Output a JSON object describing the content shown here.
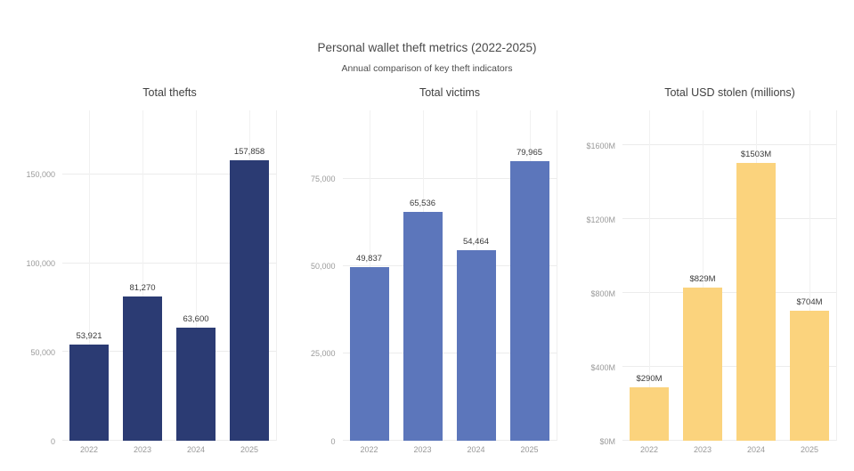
{
  "header": {
    "title": "Personal wallet theft metrics (2022-2025)",
    "subtitle": "Annual comparison of key theft indicators"
  },
  "chart_data": [
    {
      "type": "bar",
      "title": "Total thefts",
      "categories": [
        "2022",
        "2023",
        "2024",
        "2025"
      ],
      "values": [
        53921,
        81270,
        63600,
        157858
      ],
      "value_labels": [
        "53,921",
        "81,270",
        "63,600",
        "157,858"
      ],
      "bar_color": "#2b3b73",
      "xlabel": "",
      "ylabel": "",
      "ylim": [
        0,
        186000
      ],
      "yticks": [
        {
          "value": 0,
          "label": "0"
        },
        {
          "value": 50000,
          "label": "50,000"
        },
        {
          "value": 100000,
          "label": "100,000"
        },
        {
          "value": 150000,
          "label": "150,000"
        }
      ],
      "grid": true,
      "legend": "none"
    },
    {
      "type": "bar",
      "title": "Total victims",
      "categories": [
        "2022",
        "2023",
        "2024",
        "2025"
      ],
      "values": [
        49837,
        65536,
        54464,
        79965
      ],
      "value_labels": [
        "49,837",
        "65,536",
        "54,464",
        "79,965"
      ],
      "bar_color": "#5c76bb",
      "xlabel": "",
      "ylabel": "",
      "ylim": [
        0,
        94600
      ],
      "yticks": [
        {
          "value": 0,
          "label": "0"
        },
        {
          "value": 25000,
          "label": "25,000"
        },
        {
          "value": 50000,
          "label": "50,000"
        },
        {
          "value": 75000,
          "label": "75,000"
        }
      ],
      "grid": true,
      "legend": "none"
    },
    {
      "type": "bar",
      "title": "Total USD stolen (millions)",
      "categories": [
        "2022",
        "2023",
        "2024",
        "2025"
      ],
      "values": [
        290,
        829,
        1503,
        704
      ],
      "value_labels": [
        "$290M",
        "$829M",
        "$1503M",
        "$704M"
      ],
      "bar_color": "#fbd37d",
      "xlabel": "",
      "ylabel": "",
      "ylim": [
        0,
        1790
      ],
      "yticks": [
        {
          "value": 0,
          "label": "$0M"
        },
        {
          "value": 400,
          "label": "$400M"
        },
        {
          "value": 800,
          "label": "$800M"
        },
        {
          "value": 1200,
          "label": "$1200M"
        },
        {
          "value": 1600,
          "label": "$1600M"
        }
      ],
      "grid": true,
      "legend": "none"
    }
  ],
  "colors": {
    "grid": "#ececec",
    "tick_label": "#9a9a9a",
    "value_label": "#3a3a3a",
    "navy_bar": "#2b3b73",
    "blue_bar": "#5c76bb",
    "gold_bar": "#fbd37d"
  }
}
